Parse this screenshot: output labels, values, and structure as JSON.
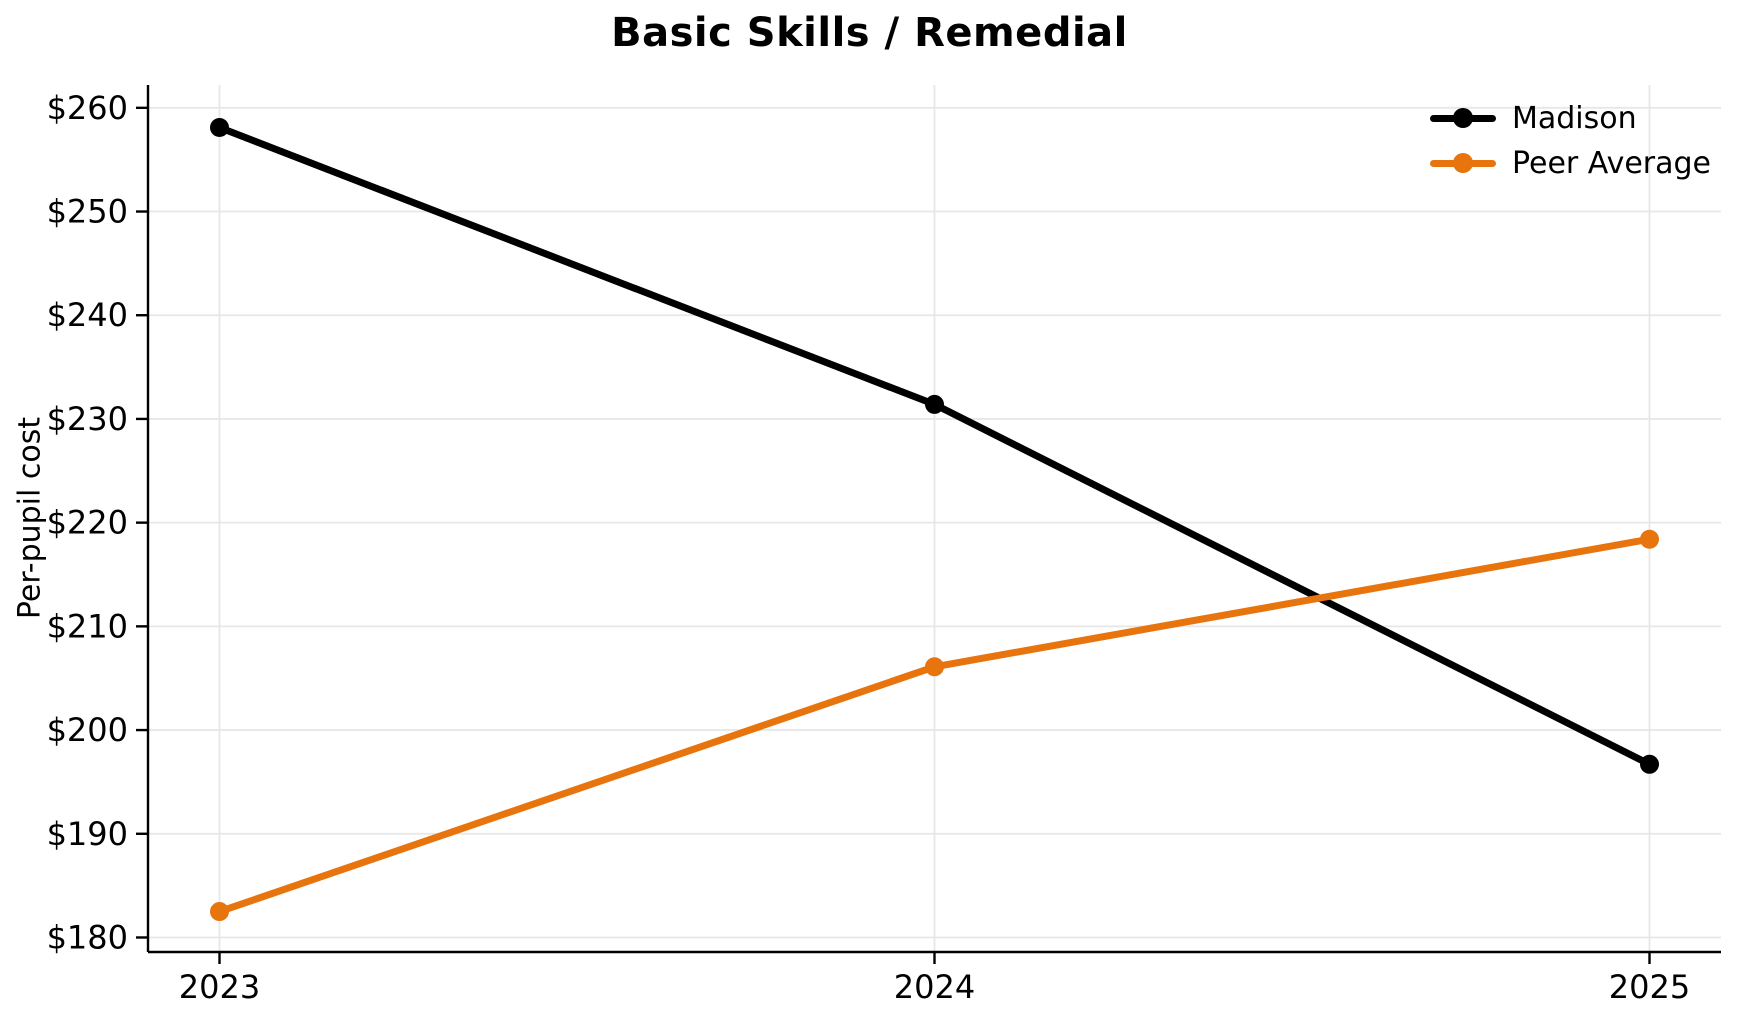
{
  "chart_data": {
    "type": "line",
    "title": "Basic Skills / Remedial",
    "xlabel": "",
    "ylabel": "Per-pupil cost",
    "x": [
      2023,
      2024,
      2025
    ],
    "x_tick_labels": [
      "2023",
      "2024",
      "2025"
    ],
    "y_ticks": [
      180,
      190,
      200,
      210,
      220,
      230,
      240,
      250,
      260
    ],
    "y_tick_labels": [
      "$180",
      "$190",
      "$200",
      "$210",
      "$220",
      "$230",
      "$240",
      "$250",
      "$260"
    ],
    "xlim": [
      2022.9,
      2025.1
    ],
    "ylim": [
      178.6,
      262.2
    ],
    "grid": true,
    "grid_color": "#e7e7e7",
    "axis_color": "#000000",
    "legend_position": "upper right",
    "marker": "circle",
    "series": [
      {
        "name": "Madison",
        "color": "#000000",
        "values": [
          258.1,
          231.4,
          196.7
        ]
      },
      {
        "name": "Peer Average",
        "color": "#e8740e",
        "values": [
          182.5,
          206.1,
          218.4
        ]
      }
    ]
  }
}
